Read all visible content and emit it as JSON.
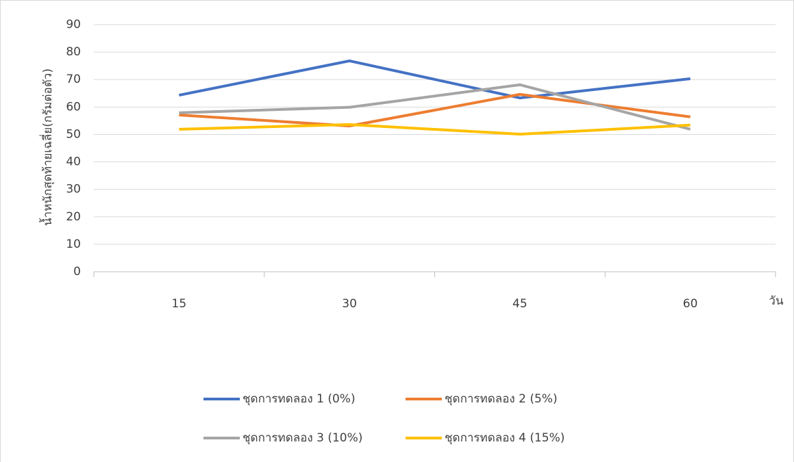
{
  "chart_data": {
    "type": "line",
    "y_label": "น้ำหนักสุดท้ายเฉลี่ย(กรัมต่อตัว)",
    "x_label": "วัน",
    "categories": [
      "15",
      "30",
      "45",
      "60"
    ],
    "series": [
      {
        "name": "ชุดการทดลอง 1 (0%)",
        "color": "#4472c4",
        "values": [
          64.3,
          76.8,
          63.3,
          70.3
        ]
      },
      {
        "name": "ชุดการทดลอง 2 (5%)",
        "color": "#ed7d31",
        "values": [
          57.1,
          53.1,
          64.6,
          56.4
        ]
      },
      {
        "name": "ชุดการทดลอง 3 (10%)",
        "color": "#a5a5a5",
        "values": [
          57.9,
          59.9,
          68.1,
          51.9
        ]
      },
      {
        "name": "ชุดการทดลอง 4 (15%)",
        "color": "#ffc000",
        "values": [
          51.9,
          53.6,
          50.1,
          53.4
        ]
      }
    ],
    "ylim": [
      0,
      90
    ],
    "yticks": [
      0,
      10,
      20,
      30,
      40,
      50,
      60,
      70,
      80,
      90
    ],
    "grid": true,
    "legend": "bottom"
  }
}
